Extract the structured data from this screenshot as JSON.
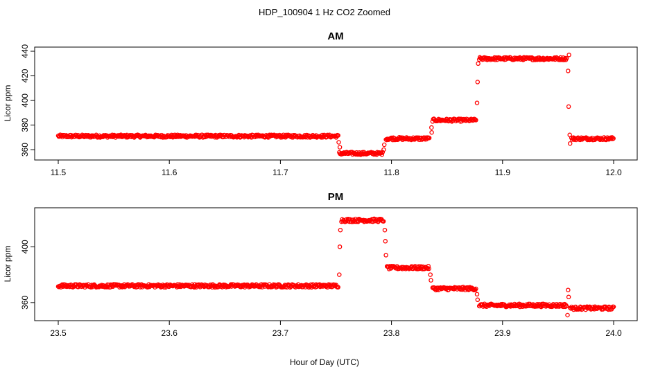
{
  "figure_title": "HDP_100904  1 Hz CO2 Zoomed",
  "xlabel": "Hour of Day (UTC)",
  "point_color": "#ff0000",
  "chart_data": [
    {
      "type": "scatter",
      "title": "AM",
      "ylabel": "Licor ppm",
      "xlim": [
        11.5,
        12.0
      ],
      "ylim": [
        355,
        440
      ],
      "x_ticks": [
        "11.5",
        "11.6",
        "11.7",
        "11.8",
        "11.9",
        "12.0"
      ],
      "y_ticks": [
        "360",
        "380",
        "400",
        "420",
        "440"
      ],
      "series": [
        {
          "segments": [
            {
              "x_start": 11.5,
              "x_end": 11.752,
              "y": 371
            },
            {
              "x_start": 11.753,
              "x_end": 11.792,
              "y": 357
            },
            {
              "x_start": 11.795,
              "x_end": 11.834,
              "y": 369
            },
            {
              "x_start": 11.837,
              "x_end": 11.876,
              "y": 384
            },
            {
              "x_start": 11.879,
              "x_end": 11.958,
              "y": 434
            },
            {
              "x_start": 11.962,
              "x_end": 12.0,
              "y": 369
            }
          ],
          "transitions": [
            {
              "x": 11.7525,
              "y": 366
            },
            {
              "x": 11.7535,
              "y": 362
            },
            {
              "x": 11.793,
              "y": 360
            },
            {
              "x": 11.7935,
              "y": 364
            },
            {
              "x": 11.836,
              "y": 378
            },
            {
              "x": 11.8362,
              "y": 374
            },
            {
              "x": 11.877,
              "y": 398
            },
            {
              "x": 11.8775,
              "y": 415
            },
            {
              "x": 11.878,
              "y": 430
            },
            {
              "x": 11.959,
              "y": 424
            },
            {
              "x": 11.9595,
              "y": 395
            },
            {
              "x": 11.9605,
              "y": 372
            },
            {
              "x": 11.9598,
              "y": 437
            },
            {
              "x": 11.9608,
              "y": 365
            }
          ]
        }
      ]
    },
    {
      "type": "scatter",
      "title": "PM",
      "ylabel": "Licor ppm",
      "xlim": [
        23.5,
        24.0
      ],
      "ylim": [
        350,
        425
      ],
      "x_ticks": [
        "23.5",
        "23.6",
        "23.7",
        "23.8",
        "23.9",
        "24.0"
      ],
      "y_ticks": [
        "360",
        "400"
      ],
      "series": [
        {
          "segments": [
            {
              "x_start": 23.5,
              "x_end": 23.752,
              "y": 372
            },
            {
              "x_start": 23.755,
              "x_end": 23.793,
              "y": 419
            },
            {
              "x_start": 23.796,
              "x_end": 23.834,
              "y": 385
            },
            {
              "x_start": 23.837,
              "x_end": 23.876,
              "y": 370
            },
            {
              "x_start": 23.879,
              "x_end": 23.958,
              "y": 358
            },
            {
              "x_start": 23.961,
              "x_end": 24.0,
              "y": 356
            }
          ],
          "transitions": [
            {
              "x": 23.753,
              "y": 380
            },
            {
              "x": 23.7535,
              "y": 400
            },
            {
              "x": 23.754,
              "y": 412
            },
            {
              "x": 23.794,
              "y": 412
            },
            {
              "x": 23.7945,
              "y": 404
            },
            {
              "x": 23.795,
              "y": 394
            },
            {
              "x": 23.835,
              "y": 380
            },
            {
              "x": 23.8355,
              "y": 376
            },
            {
              "x": 23.877,
              "y": 366
            },
            {
              "x": 23.8775,
              "y": 362
            },
            {
              "x": 23.959,
              "y": 369
            },
            {
              "x": 23.9595,
              "y": 364
            },
            {
              "x": 23.9585,
              "y": 351
            }
          ]
        }
      ]
    }
  ]
}
